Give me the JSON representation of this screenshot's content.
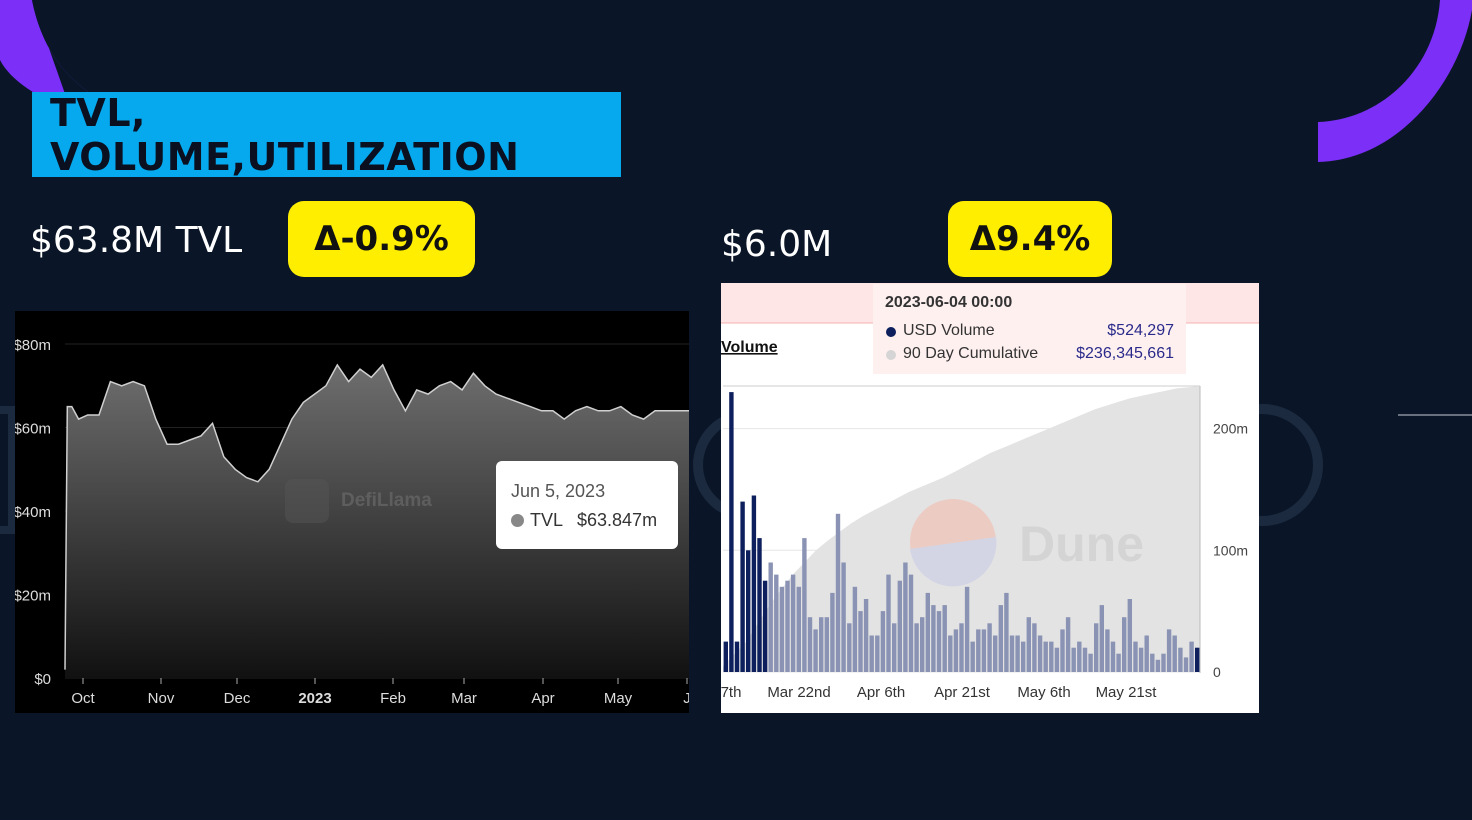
{
  "title": "TVL, VOLUME,UTILIZATION",
  "tvl": {
    "label": "$63.8M TVL",
    "change": "Δ-0.9%",
    "watermark": "DefiLlama",
    "tooltip": {
      "date": "Jun 5, 2023",
      "series": "TVL",
      "value": "$63.847m"
    }
  },
  "volume": {
    "label": "$6.0M",
    "change": "Δ9.4%",
    "watermark": "Dune",
    "panel_title": "Volume",
    "tooltip": {
      "datetime": "2023-06-04 00:00",
      "rows": [
        {
          "name": "USD Volume",
          "value": "$524,297"
        },
        {
          "name": "90 Day Cumulative",
          "value": "$236,345,661"
        }
      ]
    }
  },
  "colors": {
    "accent_purple": "#7b2ff7",
    "title_bg": "#06a9ee",
    "badge_bg": "#ffee00",
    "background": "#0a1628",
    "volume_bar": "#8a93b3",
    "volume_bar_dark": "#0d1f5c",
    "cumulative_fill": "#e3e3e3"
  },
  "chart_data": [
    {
      "type": "area",
      "y_ticks": [
        "$0",
        "$20m",
        "$40m",
        "$60m",
        "$80m"
      ],
      "x_ticks": [
        "Oct",
        "Nov",
        "Dec",
        "2023",
        "Feb",
        "Mar",
        "Apr",
        "May",
        "J"
      ],
      "ylim": [
        0,
        80
      ],
      "x": [
        0,
        1,
        3,
        6,
        10,
        15,
        20,
        25,
        30,
        35,
        40,
        45,
        50,
        55,
        60,
        65,
        70,
        75,
        80,
        85,
        90,
        95,
        100,
        105,
        110,
        115,
        120,
        125,
        130,
        135,
        140,
        145,
        150,
        155,
        160,
        165,
        170,
        175,
        180,
        185,
        190,
        195,
        200,
        205,
        210,
        215,
        220,
        225,
        230,
        235,
        240,
        245,
        250,
        255,
        260,
        265,
        270,
        275
      ],
      "values": [
        2,
        65,
        65,
        62,
        63,
        63,
        71,
        70,
        71,
        70,
        62,
        56,
        56,
        57,
        58,
        61,
        53,
        50,
        48,
        47,
        50,
        56,
        62,
        66,
        68,
        70,
        75,
        71,
        74,
        72,
        75,
        69,
        64,
        69,
        68,
        70,
        71,
        69,
        73,
        70,
        68,
        67,
        66,
        65,
        64,
        64,
        62,
        64,
        65,
        64,
        64,
        65,
        63,
        62,
        64,
        64,
        64,
        64
      ]
    },
    {
      "type": "bar",
      "x_ticks": [
        "7th",
        "Mar 22nd",
        "Apr 6th",
        "Apr 21st",
        "May 6th",
        "May 21st"
      ],
      "y_ticks": [
        "0",
        "100m",
        "200m"
      ],
      "ylim": [
        0,
        235
      ],
      "values": [
        25,
        230,
        25,
        140,
        100,
        145,
        110,
        75,
        90,
        80,
        70,
        75,
        80,
        70,
        110,
        45,
        35,
        45,
        45,
        65,
        130,
        90,
        40,
        70,
        50,
        60,
        30,
        30,
        50,
        80,
        40,
        75,
        90,
        80,
        40,
        45,
        65,
        55,
        50,
        55,
        30,
        35,
        40,
        70,
        25,
        35,
        35,
        40,
        30,
        55,
        65,
        30,
        30,
        25,
        45,
        40,
        30,
        25,
        25,
        20,
        35,
        45,
        20,
        25,
        20,
        15,
        40,
        55,
        35,
        25,
        15,
        45,
        60,
        25,
        20,
        30,
        15,
        10,
        15,
        35,
        30,
        20,
        12,
        25,
        20
      ],
      "cumulative": [
        5,
        15,
        25,
        40,
        55,
        68,
        80,
        90,
        100,
        108,
        115,
        122,
        128,
        133,
        138,
        143,
        148,
        152,
        156,
        160,
        165,
        170,
        175,
        180,
        184,
        188,
        192,
        196,
        200,
        204,
        208,
        212,
        216,
        219,
        222,
        225,
        227,
        229,
        231,
        233,
        234,
        235
      ]
    }
  ]
}
